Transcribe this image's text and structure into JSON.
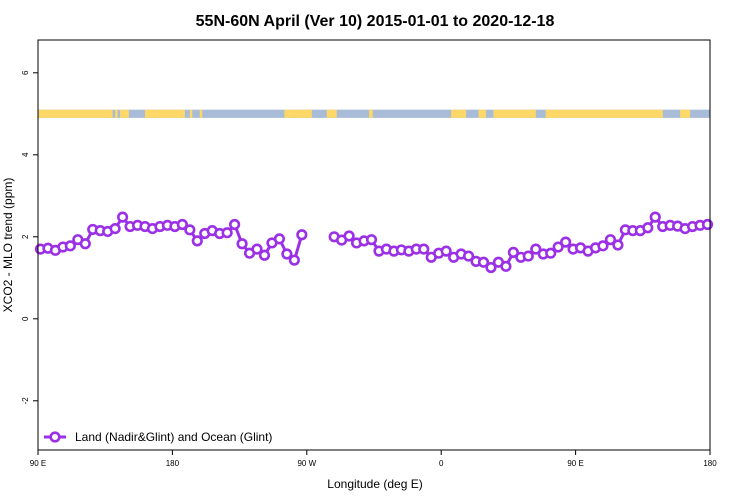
{
  "chart_data": {
    "type": "line",
    "title": "55N-60N April (Ver 10)   2015-01-01 to 2020-12-18",
    "xlabel": "Longitude (deg E)",
    "ylabel": "XCO2 - MLO trend (ppm)",
    "xlim": [
      -90,
      180
    ],
    "ylim": [
      -3.2,
      6.8
    ],
    "x_ticks": [
      {
        "value": -90,
        "label": "90 E"
      },
      {
        "value": -36,
        "label": "180"
      },
      {
        "value": 18,
        "label": "90 W"
      },
      {
        "value": 72,
        "label": "0"
      },
      {
        "value": 126,
        "label": "90 E"
      },
      {
        "value": 180,
        "label": "180"
      }
    ],
    "y_ticks": [
      {
        "value": -2,
        "label": "-2"
      },
      {
        "value": 0,
        "label": "0"
      },
      {
        "value": 2,
        "label": "2"
      },
      {
        "value": 4,
        "label": "4"
      },
      {
        "value": 6,
        "label": "6"
      }
    ],
    "grid": false,
    "legend_position": "bottom-left",
    "colors": {
      "series": "#9b30e6",
      "land": "#fdd868",
      "ocean": "#a8bcd8"
    },
    "land_ocean_band": {
      "y_range": [
        4.9,
        5.1
      ],
      "land_segments": [
        [
          -90,
          -60
        ],
        [
          -59,
          -58
        ],
        [
          -57,
          -58
        ],
        [
          -57,
          -53.5
        ],
        [
          -47,
          -31
        ],
        [
          -29,
          -28
        ],
        [
          -25,
          -24
        ],
        [
          9,
          13
        ],
        [
          13,
          20
        ],
        [
          26,
          30
        ],
        [
          43,
          44.5
        ],
        [
          76,
          82
        ],
        [
          87,
          90
        ],
        [
          93,
          110
        ],
        [
          114,
          161
        ],
        [
          168,
          172
        ],
        [
          180,
          180
        ]
      ]
    },
    "series": [
      {
        "name": "Land (Nadir&Glint) and Ocean (Glint)",
        "x": [
          -89,
          -86,
          -83,
          -80,
          -77,
          -74,
          -71,
          -68,
          -65,
          -62,
          -59,
          -56,
          -53,
          -50,
          -47,
          -44,
          -41,
          -38,
          -35,
          -32,
          -29,
          -26,
          -23,
          -20,
          -17,
          -14,
          -11,
          -8,
          -5,
          -2,
          1,
          4,
          7,
          10,
          13,
          16,
          19,
          null,
          29,
          32,
          35,
          38,
          41,
          44,
          47,
          50,
          53,
          56,
          59,
          62,
          65,
          68,
          71,
          74,
          77,
          80,
          83,
          86,
          89,
          92,
          95,
          98,
          101,
          104,
          107,
          110,
          113,
          116,
          119,
          122,
          125,
          128,
          131,
          134,
          137,
          140,
          143,
          146,
          149,
          152,
          155,
          158,
          161,
          164,
          167,
          170,
          173,
          176,
          179
        ],
        "y": [
          1.7,
          1.72,
          1.67,
          1.75,
          1.78,
          1.93,
          1.83,
          2.18,
          2.15,
          2.13,
          2.2,
          2.48,
          2.25,
          2.28,
          2.25,
          2.2,
          2.25,
          2.28,
          2.25,
          2.3,
          2.17,
          1.9,
          2.08,
          2.15,
          2.08,
          2.1,
          2.3,
          1.83,
          1.6,
          1.7,
          1.55,
          1.85,
          1.95,
          1.58,
          1.43,
          2.05,
          null,
          null,
          2.0,
          1.92,
          2.02,
          1.85,
          1.9,
          1.93,
          1.65,
          1.7,
          1.65,
          1.68,
          1.65,
          1.7,
          1.7,
          1.5,
          1.6,
          1.65,
          1.5,
          1.58,
          1.53,
          1.4,
          1.38,
          1.25,
          1.38,
          1.28,
          1.62,
          1.5,
          1.53,
          1.7,
          1.58,
          1.6,
          1.75,
          1.87,
          1.7,
          1.73,
          1.65,
          1.73,
          1.78,
          1.93,
          1.8,
          2.17,
          2.15,
          2.15,
          2.22,
          2.48,
          2.25,
          2.28,
          2.26,
          2.2,
          2.25,
          2.28,
          2.3
        ]
      }
    ]
  }
}
